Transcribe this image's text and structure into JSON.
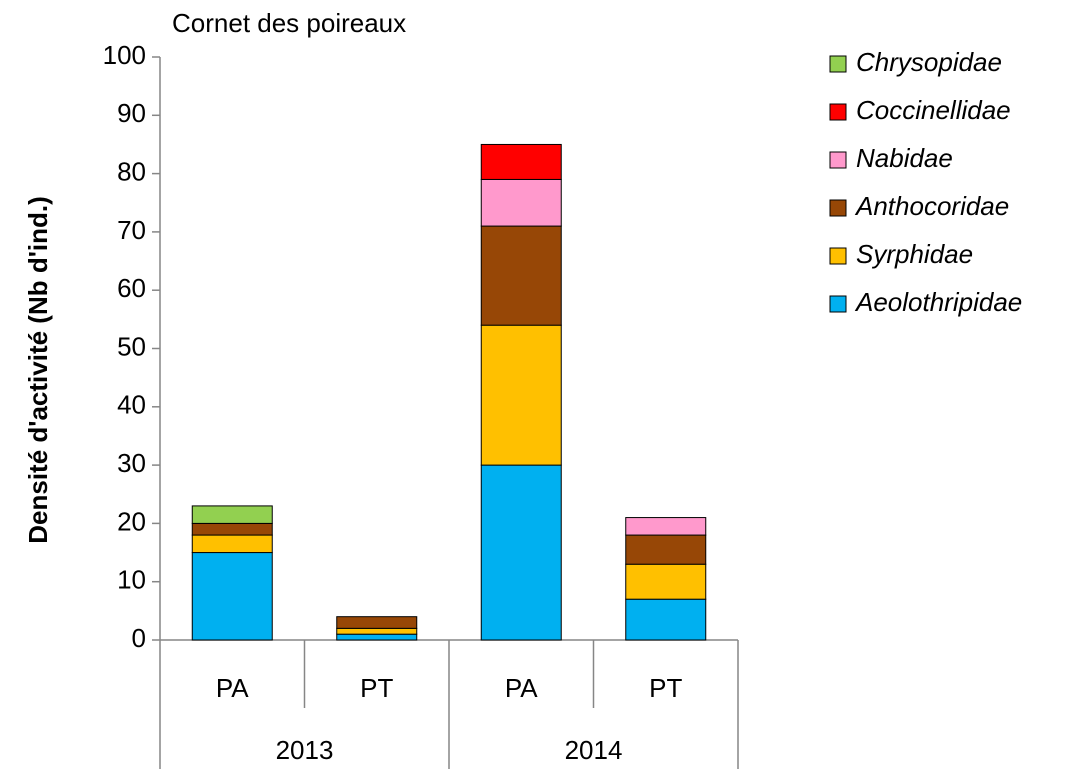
{
  "chart_data": {
    "type": "bar",
    "stacked": true,
    "title": "Cornet des poireaux",
    "y_label": "Densité d'activité (Nb d'ind.)",
    "categories": [
      "PA",
      "PT",
      "PA",
      "PT"
    ],
    "group_labels": [
      "2013",
      "2014"
    ],
    "series": [
      {
        "name": "Aeolothripidae",
        "color": "#00b0f0",
        "values": [
          15,
          1,
          30,
          7
        ]
      },
      {
        "name": "Syrphidae",
        "color": "#ffc000",
        "values": [
          3,
          1,
          24,
          6
        ]
      },
      {
        "name": "Anthocoridae",
        "color": "#974706",
        "values": [
          2,
          2,
          17,
          5
        ]
      },
      {
        "name": "Nabidae",
        "color": "#ff99cc",
        "values": [
          0,
          0,
          8,
          3
        ]
      },
      {
        "name": "Coccinellidae",
        "color": "#ff0000",
        "values": [
          0,
          0,
          6,
          0
        ]
      },
      {
        "name": "Chrysopidae",
        "color": "#92d050",
        "values": [
          3,
          0,
          0,
          0
        ]
      }
    ],
    "ylim": [
      0,
      100
    ],
    "yticks": [
      0,
      10,
      20,
      30,
      40,
      50,
      60,
      70,
      80,
      90,
      100
    ],
    "legend": "right"
  }
}
